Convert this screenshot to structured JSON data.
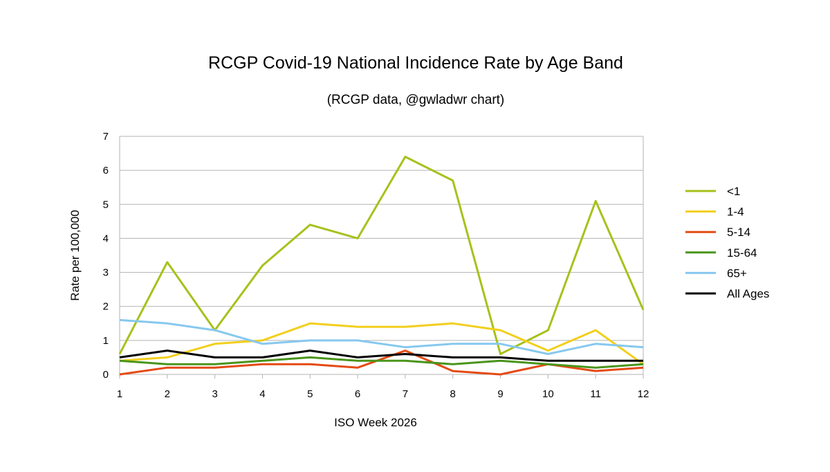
{
  "chart_data": {
    "type": "line",
    "title": "RCGP Covid-19 National Incidence Rate by Age Band",
    "subtitle": "(RCGP data, @gwladwr chart)",
    "xlabel": "ISO Week 2026",
    "ylabel": "Rate per 100,000",
    "x": [
      1,
      2,
      3,
      4,
      5,
      6,
      7,
      8,
      9,
      10,
      11,
      12
    ],
    "ylim": [
      0,
      7
    ],
    "yticks": [
      0,
      1,
      2,
      3,
      4,
      5,
      6,
      7
    ],
    "grid": true,
    "legend_position": "right",
    "series": [
      {
        "name": "<1",
        "color": "#a5c21b",
        "values": [
          0.6,
          3.3,
          1.3,
          3.2,
          4.4,
          4.0,
          6.4,
          5.7,
          0.6,
          1.3,
          5.1,
          1.9
        ]
      },
      {
        "name": "1-4",
        "color": "#f2cf1d",
        "values": [
          0.4,
          0.5,
          0.9,
          1.0,
          1.5,
          1.4,
          1.4,
          1.5,
          1.3,
          0.7,
          1.3,
          0.3
        ]
      },
      {
        "name": "5-14",
        "color": "#e54a13",
        "values": [
          0.0,
          0.2,
          0.2,
          0.3,
          0.3,
          0.2,
          0.7,
          0.1,
          0.0,
          0.3,
          0.1,
          0.2
        ]
      },
      {
        "name": "15-64",
        "color": "#4a951b",
        "values": [
          0.4,
          0.3,
          0.3,
          0.4,
          0.5,
          0.4,
          0.4,
          0.3,
          0.4,
          0.3,
          0.2,
          0.3
        ]
      },
      {
        "name": "65+",
        "color": "#86c8ee",
        "values": [
          1.6,
          1.5,
          1.3,
          0.9,
          1.0,
          1.0,
          0.8,
          0.9,
          0.9,
          0.6,
          0.9,
          0.8
        ]
      },
      {
        "name": "All Ages",
        "color": "#000000",
        "values": [
          0.5,
          0.7,
          0.5,
          0.5,
          0.7,
          0.5,
          0.6,
          0.5,
          0.5,
          0.4,
          0.4,
          0.4
        ]
      }
    ]
  }
}
